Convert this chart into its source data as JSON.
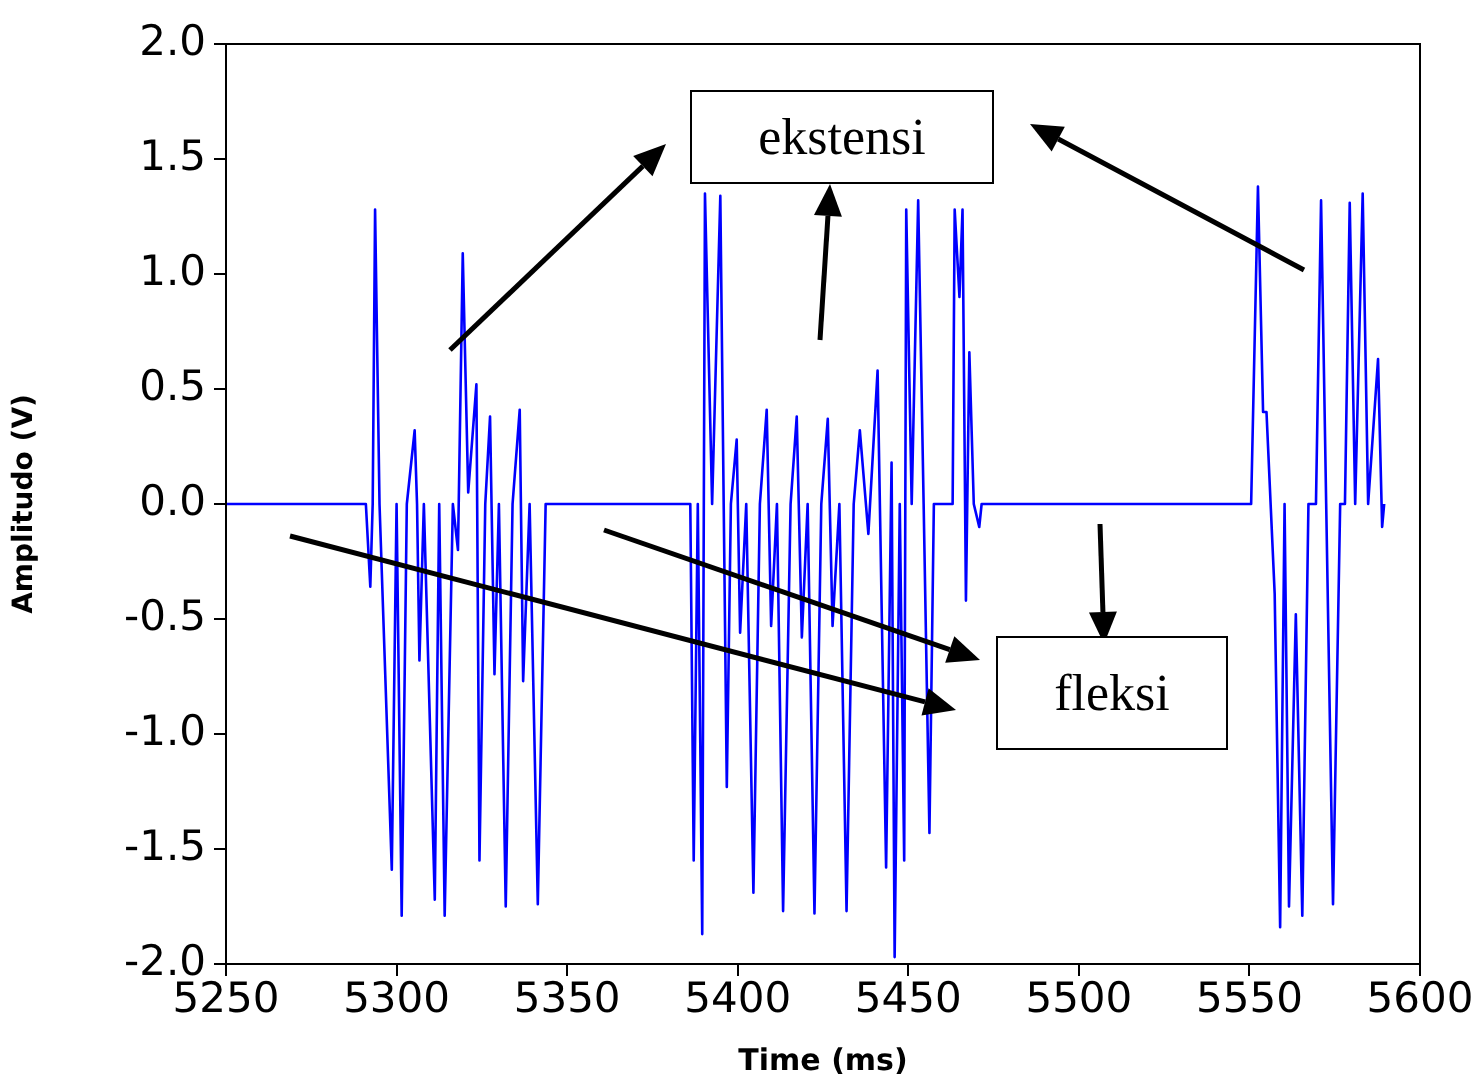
{
  "chart_data": {
    "type": "line",
    "xlabel": "Time (ms)",
    "ylabel": "Amplitudo (V)",
    "xlim": [
      5250,
      5600
    ],
    "xticks": [
      5250,
      5300,
      5350,
      5400,
      5450,
      5500,
      5550,
      5600
    ],
    "ylim": [
      -2,
      2
    ],
    "yticks": [
      {
        "value": -2,
        "label": "-2.0"
      },
      {
        "value": -1.5,
        "label": "-1.5"
      },
      {
        "value": -1,
        "label": "-1.0"
      },
      {
        "value": -0.5,
        "label": "-0.5"
      },
      {
        "value": 0,
        "label": "0.0"
      },
      {
        "value": 0.5,
        "label": "0.5"
      },
      {
        "value": 1,
        "label": "1.0"
      },
      {
        "value": 1.5,
        "label": "1.5"
      },
      {
        "value": 2,
        "label": "2.0"
      }
    ],
    "grid": false,
    "legend": false,
    "marker": "none",
    "line_style": "solid",
    "annotations": [
      "ekstensi",
      "fleksi"
    ],
    "series": [
      {
        "color": "#0000ff",
        "x": [
          5250,
          5291,
          5292.3,
          5293,
          5293.7,
          5295,
          5298.6,
          5300,
          5301.5,
          5303,
          5305.3,
          5306,
          5306.7,
          5308,
          5311.2,
          5312.5,
          5314.1,
          5316.5,
          5318,
          5319.4,
          5321,
          5323.4,
          5324.3,
          5326,
          5327.4,
          5328.7,
          5330,
          5332,
          5334,
          5336.1,
          5337.1,
          5339,
          5341.4,
          5343.7,
          5386.1,
          5387.1,
          5388.3,
          5389.6,
          5390.4,
          5392.5,
          5394.9,
          5396.8,
          5398,
          5399.7,
          5400.7,
          5402.5,
          5404.6,
          5406.5,
          5408.5,
          5409.8,
          5411.5,
          5413.3,
          5415.5,
          5417.3,
          5418.8,
          5420.5,
          5422.5,
          5424.5,
          5426.4,
          5427.8,
          5429.8,
          5431.9,
          5434,
          5435.8,
          5438.3,
          5441,
          5443.5,
          5445.1,
          5446,
          5447.5,
          5448.8,
          5449.4,
          5451,
          5452.9,
          5454.5,
          5456.2,
          5457.5,
          5463,
          5463.6,
          5465,
          5465.9,
          5466.9,
          5467.9,
          5469.2,
          5470.8,
          5471.5,
          5550.5,
          5552.5,
          5554,
          5555,
          5557.4,
          5559,
          5560.3,
          5561.6,
          5563.6,
          5565.5,
          5567.3,
          5569.5,
          5571,
          5572.5,
          5574.5,
          5576.6,
          5578,
          5579.4,
          5581,
          5583.2,
          5584.8,
          5587.7,
          5588.9,
          5589.5
        ],
        "values": [
          0,
          0,
          -0.36,
          0,
          1.28,
          0,
          -1.59,
          0,
          -1.79,
          0,
          0.32,
          0,
          -0.68,
          0,
          -1.72,
          0,
          -1.79,
          0,
          -0.2,
          1.09,
          0.05,
          0.52,
          -1.55,
          0,
          0.38,
          -0.74,
          0,
          -1.75,
          0,
          0.41,
          -0.77,
          0,
          -1.74,
          0,
          0,
          -1.55,
          0,
          -1.87,
          1.35,
          0,
          1.34,
          -1.23,
          0,
          0.28,
          -0.56,
          0,
          -1.69,
          0,
          0.41,
          -0.53,
          0,
          -1.77,
          0,
          0.38,
          -0.58,
          0,
          -1.78,
          0,
          0.37,
          -0.53,
          0,
          -1.77,
          0,
          0.32,
          -0.13,
          0.58,
          -1.58,
          0.18,
          -1.97,
          0,
          -1.55,
          1.28,
          0,
          1.32,
          0,
          -1.43,
          0,
          0,
          1.28,
          0.9,
          1.28,
          -0.42,
          0.66,
          0,
          -0.1,
          0,
          0,
          1.38,
          0.4,
          0.4,
          -0.39,
          -1.84,
          0,
          -1.75,
          -0.48,
          -1.79,
          0,
          0,
          1.32,
          0,
          -1.74,
          0,
          0,
          1.31,
          0,
          1.35,
          0,
          0.63,
          -0.1,
          0
        ]
      }
    ]
  }
}
